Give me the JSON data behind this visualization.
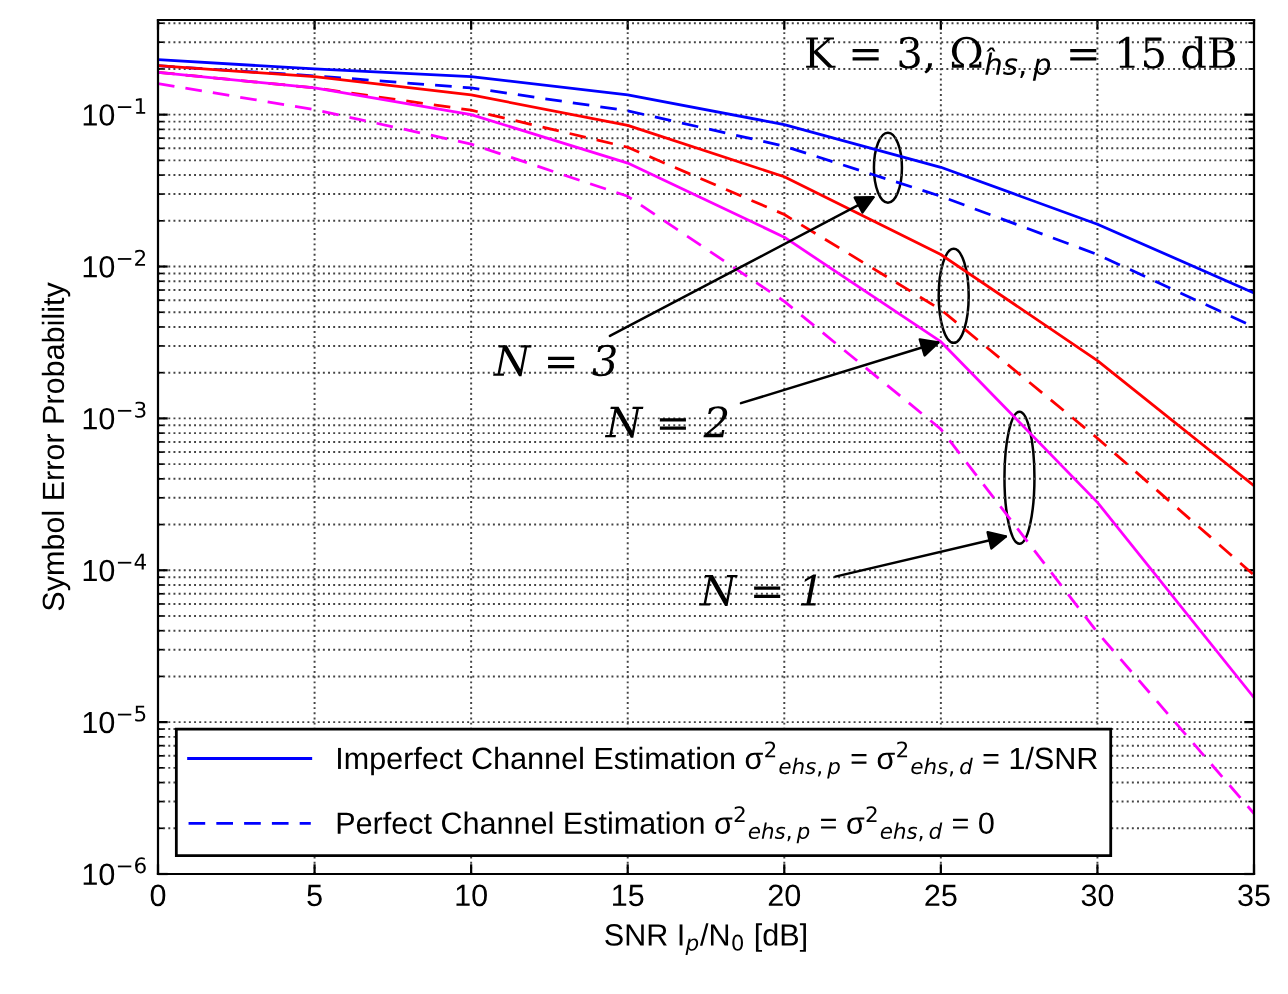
{
  "chart_data": {
    "type": "line",
    "xlabel": "SNR I$_{p}$/N$_{0}$ [dB]",
    "ylabel": "Symbol Error Probability",
    "log": "y",
    "grid": true,
    "legend": "bottom left",
    "marker": "none",
    "x": [
      0,
      5,
      10,
      15,
      20,
      25,
      30,
      35
    ],
    "xlim": [
      0,
      35
    ],
    "xticks": [
      0,
      5,
      10,
      15,
      20,
      25,
      30,
      35
    ],
    "ylim": [
      1e-06,
      0.42
    ],
    "yticks": [
      {
        "value": 1e-06,
        "label": "10$^{−6}$"
      },
      {
        "value": 1e-05,
        "label": "10$^{−5}$"
      },
      {
        "value": 0.0001,
        "label": "10$^{−4}$"
      },
      {
        "value": 0.001,
        "label": "10$^{−3}$"
      },
      {
        "value": 0.01,
        "label": "10$^{−2}$"
      },
      {
        "value": 0.1,
        "label": "10$^{−1}$"
      }
    ],
    "series": [
      {
        "name": "Imperfect Channel Estimation σ$^{2}$$_{ehs,p}$ = σ$^{2}$$_{ehs,d}$ = 1/SNR",
        "color": "#0000ff",
        "line_style": "solid",
        "values": [
          0.23,
          0.2,
          0.178,
          0.135,
          0.086,
          0.045,
          0.019,
          0.0067
        ]
      },
      {
        "name": "Perfect Channel Estimation σ$^{2}$$_{ehs,p}$ = σ$^{2}$$_{ehs,d}$ = 0",
        "color": "#0000ff",
        "line_style": "dashed",
        "values": [
          0.21,
          0.18,
          0.15,
          0.106,
          0.062,
          0.029,
          0.012,
          0.004
        ]
      },
      {
        "color": "#ff0000",
        "line_style": "solid",
        "values": [
          0.21,
          0.178,
          0.135,
          0.085,
          0.039,
          0.012,
          0.0024,
          0.00036
        ]
      },
      {
        "color": "#ff0000",
        "line_style": "dashed",
        "values": [
          0.19,
          0.15,
          0.107,
          0.061,
          0.022,
          0.0052,
          0.00074,
          9.3e-05
        ]
      },
      {
        "color": "#ff00ff",
        "line_style": "solid",
        "values": [
          0.19,
          0.15,
          0.1,
          0.048,
          0.0156,
          0.0032,
          0.00028,
          1.45e-05
        ]
      },
      {
        "color": "#ff00ff",
        "line_style": "dashed",
        "values": [
          0.16,
          0.108,
          0.064,
          0.029,
          0.0059,
          0.00085,
          3.9e-05,
          2.5e-06
        ]
      }
    ],
    "annotations": [
      {
        "text": "K = 3, Ω$_{ĥs,p}$ = 15 dB"
      },
      "N = 3",
      {
        "text": "N = 2",
        "x": 25,
        "y": 0.0032
      },
      "N = 1"
    ]
  }
}
